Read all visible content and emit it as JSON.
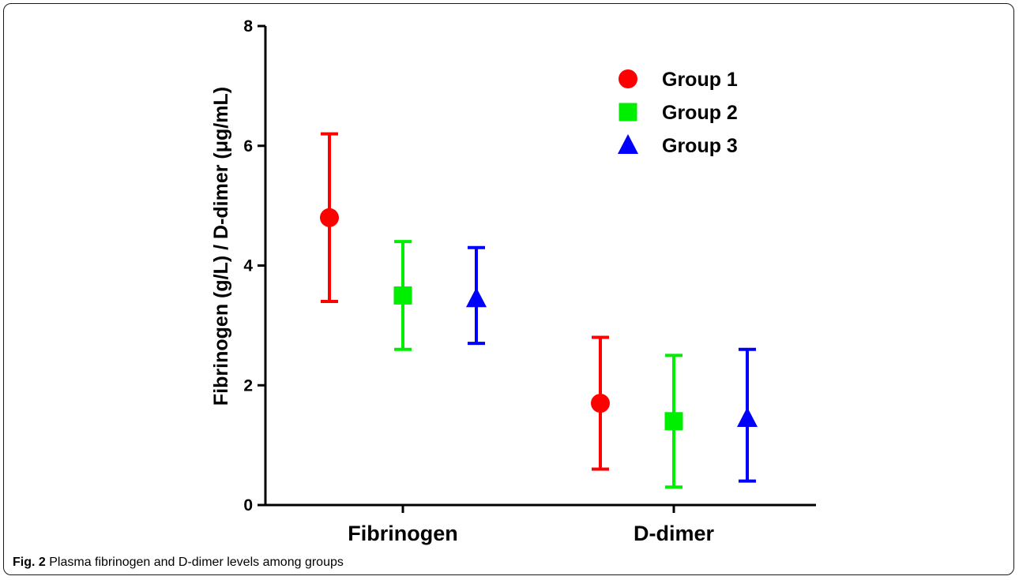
{
  "chart_data": {
    "type": "scatter",
    "subtype": "mean-with-error-bars",
    "ylabel": "Fibrinogen (g/L) / D-dimer (μg/mL)",
    "ylim": [
      0,
      8
    ],
    "yticks": [
      0,
      2,
      4,
      6,
      8
    ],
    "categories": [
      "Fibrinogen",
      "D-dimer"
    ],
    "legend_position": "top-right",
    "series": [
      {
        "name": "Group 1",
        "marker": "circle",
        "color": "#ff0000",
        "values": [
          4.8,
          1.7
        ],
        "err_low": [
          3.4,
          0.6
        ],
        "err_high": [
          6.2,
          2.8
        ]
      },
      {
        "name": "Group 2",
        "marker": "square",
        "color": "#00ee00",
        "values": [
          3.5,
          1.4
        ],
        "err_low": [
          2.6,
          0.3
        ],
        "err_high": [
          4.4,
          2.5
        ]
      },
      {
        "name": "Group 3",
        "marker": "triangle",
        "color": "#0000ff",
        "values": [
          3.45,
          1.45
        ],
        "err_low": [
          2.7,
          0.4
        ],
        "err_high": [
          4.3,
          2.6
        ]
      }
    ]
  },
  "caption": {
    "label": "Fig. 2",
    "text": "Plasma fibrinogen and D-dimer levels among groups"
  }
}
